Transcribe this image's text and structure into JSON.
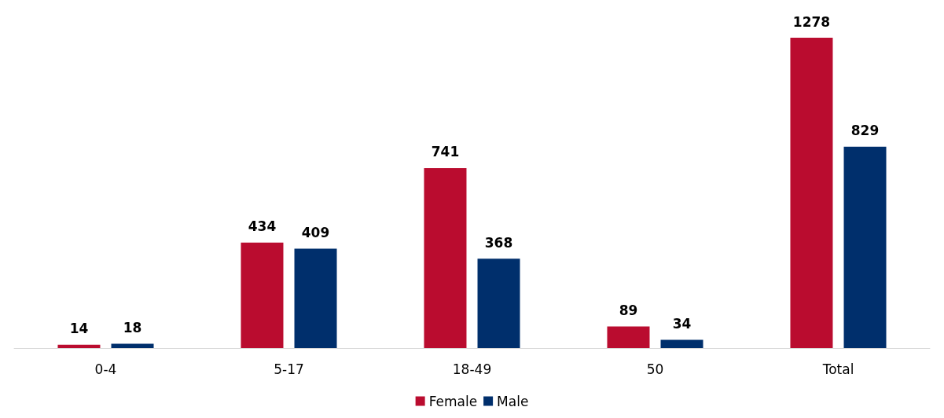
{
  "chart_data": {
    "type": "bar",
    "categories": [
      "0-4",
      "5-17",
      "18-49",
      "50",
      "Total"
    ],
    "series": [
      {
        "name": "Female",
        "color": "#ba0c2f",
        "values": [
          14,
          434,
          741,
          89,
          1278
        ]
      },
      {
        "name": "Male",
        "color": "#002f6c",
        "values": [
          18,
          409,
          368,
          34,
          829
        ]
      }
    ],
    "data_labels": true,
    "legend": "bottom",
    "grid": false
  }
}
